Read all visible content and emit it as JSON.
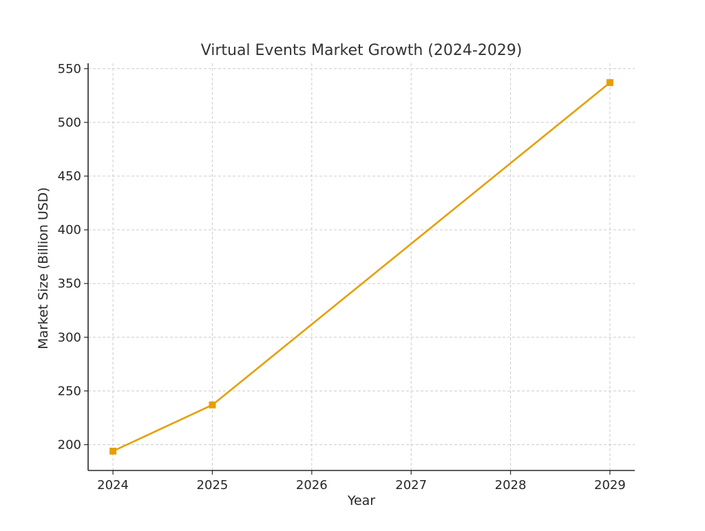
{
  "chart_data": {
    "type": "line",
    "title": "Virtual Events Market Growth (2024-2029)",
    "xlabel": "Year",
    "ylabel": "Market Size (Billion USD)",
    "x": [
      2024,
      2025,
      2026,
      2027,
      2028,
      2029
    ],
    "x_tick_labels": [
      "2024",
      "2025",
      "2026",
      "2027",
      "2028",
      "2029"
    ],
    "y_ticks": [
      200,
      250,
      300,
      350,
      400,
      450,
      500,
      550
    ],
    "y_tick_labels": [
      "200",
      "250",
      "300",
      "350",
      "400",
      "450",
      "500",
      "550"
    ],
    "xlim": [
      2023.75,
      2029.25
    ],
    "ylim": [
      176,
      555
    ],
    "grid": true,
    "series": [
      {
        "x": [
          2024,
          2025,
          2029
        ],
        "values": [
          194,
          237,
          537
        ],
        "color": "#E69F00",
        "marker": "square"
      }
    ]
  }
}
